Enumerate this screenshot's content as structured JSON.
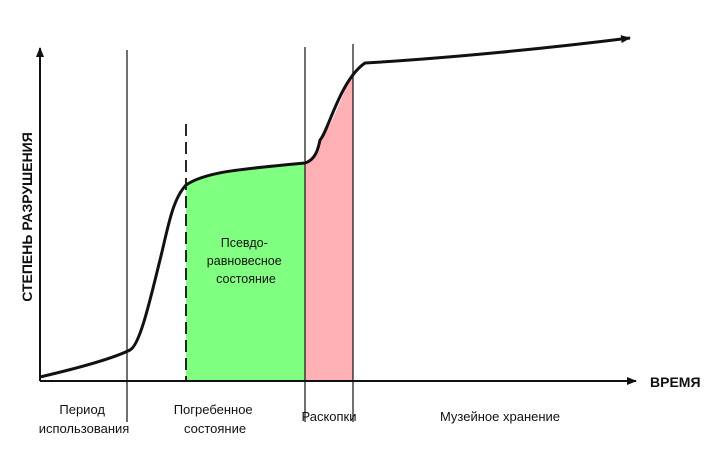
{
  "axes": {
    "y_label": "СТЕПЕНЬ РАЗРУШЕНИЯ",
    "x_label": "ВРЕМЯ"
  },
  "regions": {
    "green_label": [
      "Псевдо-",
      "равновесное",
      "состояние"
    ]
  },
  "periods": [
    {
      "lines": [
        "Период",
        "использования"
      ]
    },
    {
      "lines": [
        "Погребенное",
        "состояние"
      ]
    },
    {
      "lines": [
        "Раскопки"
      ]
    },
    {
      "lines": [
        "Музейное хранение"
      ]
    }
  ],
  "colors": {
    "pseudo_equilibrium_fill": "#80ff80",
    "excavation_fill": "#ffb0b4",
    "stroke": "#111111"
  }
}
